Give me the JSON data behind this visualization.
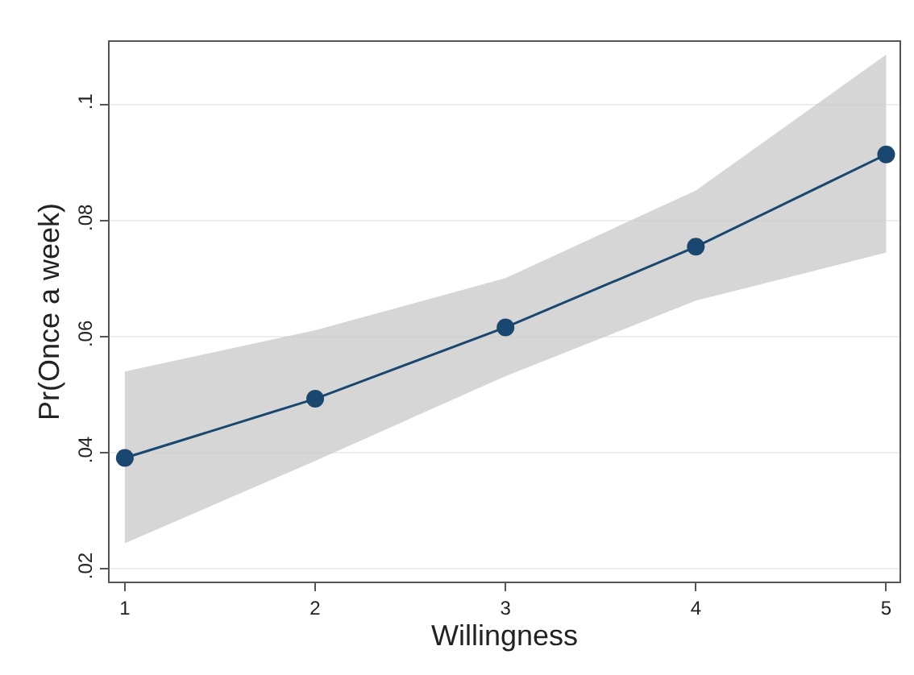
{
  "chart_data": {
    "type": "line",
    "xlabel": "Willingness",
    "ylabel": "Pr(Once a week)",
    "x": [
      1,
      2,
      3,
      4,
      5
    ],
    "series": [
      {
        "color": "#1a476f",
        "values": [
          0.0391,
          0.0493,
          0.0616,
          0.0755,
          0.0914
        ],
        "lower": [
          0.0244,
          0.0386,
          0.0532,
          0.0662,
          0.0745
        ],
        "upper": [
          0.054,
          0.0611,
          0.0701,
          0.0852,
          0.1086
        ]
      }
    ],
    "xlim": [
      0.92,
      5.07
    ],
    "ylim": [
      0.0178,
      0.1108
    ],
    "xticks": [
      1,
      2,
      3,
      4,
      5
    ],
    "yticks": [
      {
        "value": 0.02,
        "label": ".02"
      },
      {
        "value": 0.04,
        "label": ".04"
      },
      {
        "value": 0.06,
        "label": ".06"
      },
      {
        "value": 0.08,
        "label": ".08"
      },
      {
        "value": 0.1,
        "label": ".1"
      }
    ],
    "grid": "y",
    "marker": "circle",
    "line_style": "solid"
  }
}
